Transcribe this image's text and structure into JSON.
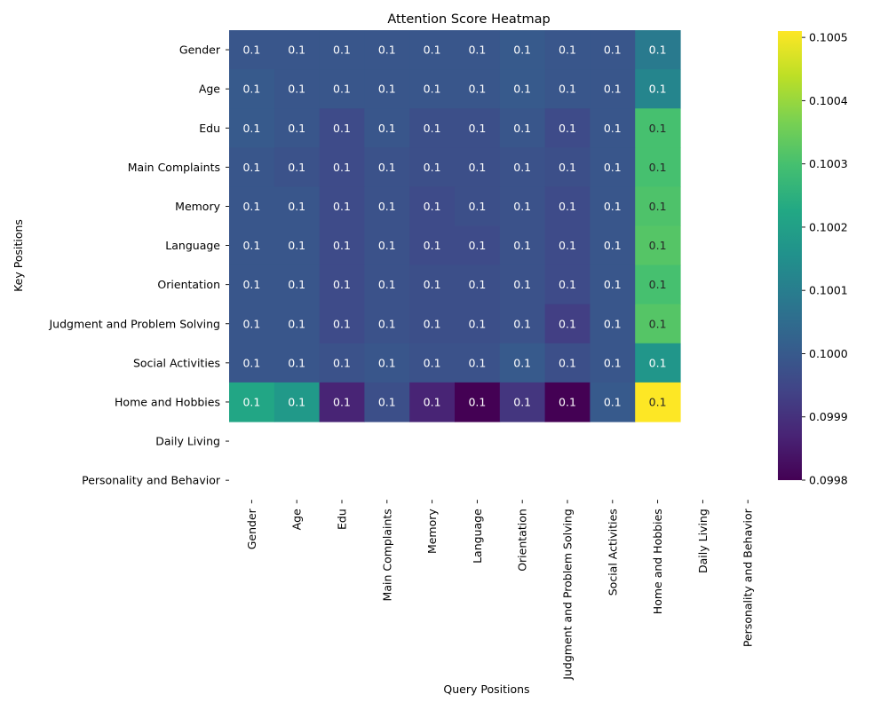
{
  "chart_data": {
    "type": "heatmap",
    "title": "Attention Score Heatmap",
    "xlabel": "Query Positions",
    "ylabel": "Key Positions",
    "x_categories": [
      "Gender",
      "Age",
      "Edu",
      "Main Complaints",
      "Memory",
      "Language",
      "Orientation",
      "Judgment and Problem Solving",
      "Social Activities",
      "Home and Hobbies",
      "Daily Living",
      "Personality and Behavior"
    ],
    "y_categories": [
      "Gender",
      "Age",
      "Edu",
      "Main Complaints",
      "Memory",
      "Language",
      "Orientation",
      "Judgment and Problem Solving",
      "Social Activities",
      "Home and Hobbies",
      "Daily Living",
      "Personality and Behavior"
    ],
    "values": [
      [
        0.09999,
        0.09999,
        0.09999,
        0.09999,
        0.09999,
        0.09999,
        0.1,
        0.09999,
        0.09999,
        0.10009,
        null,
        null
      ],
      [
        0.1,
        0.09999,
        0.09999,
        0.09999,
        0.09999,
        0.09999,
        0.1,
        0.09999,
        0.09999,
        0.10012,
        null,
        null
      ],
      [
        0.1,
        0.09999,
        0.09996,
        0.09999,
        0.09997,
        0.09997,
        0.09999,
        0.09996,
        0.09999,
        0.1003,
        null,
        null
      ],
      [
        0.09999,
        0.09998,
        0.09996,
        0.09998,
        0.09997,
        0.09997,
        0.09998,
        0.09997,
        0.09999,
        0.1003,
        null,
        null
      ],
      [
        0.09999,
        0.09999,
        0.09996,
        0.09998,
        0.09996,
        0.09997,
        0.09998,
        0.09996,
        0.09999,
        0.10031,
        null,
        null
      ],
      [
        0.09999,
        0.09999,
        0.09996,
        0.09998,
        0.09996,
        0.09996,
        0.09998,
        0.09996,
        0.09999,
        0.10032,
        null,
        null
      ],
      [
        0.09999,
        0.09999,
        0.09996,
        0.09998,
        0.09997,
        0.09997,
        0.09998,
        0.09996,
        0.09999,
        0.1003,
        null,
        null
      ],
      [
        0.09999,
        0.09999,
        0.09996,
        0.09998,
        0.09997,
        0.09997,
        0.09998,
        0.09993,
        0.09999,
        0.10032,
        null,
        null
      ],
      [
        0.09999,
        0.09999,
        0.09998,
        0.09999,
        0.09998,
        0.09998,
        0.1,
        0.09997,
        0.09999,
        0.10017,
        null,
        null
      ],
      [
        0.10022,
        0.10018,
        0.09987,
        0.09997,
        0.09987,
        0.0998,
        0.09991,
        0.0998,
        0.1,
        0.10051,
        null,
        null
      ],
      [
        null,
        null,
        null,
        null,
        null,
        null,
        null,
        null,
        null,
        null,
        null,
        null
      ],
      [
        null,
        null,
        null,
        null,
        null,
        null,
        null,
        null,
        null,
        null,
        null,
        null
      ]
    ],
    "annotation": "0.1",
    "colormap": "viridis",
    "vmin": 0.0998,
    "vmax": 0.10051,
    "colorbar_ticks": [
      "0.1005",
      "0.1004",
      "0.1003",
      "0.1002",
      "0.1001",
      "0.1000",
      "0.0999",
      "0.0998"
    ],
    "colorbar_tick_values": [
      0.1005,
      0.1004,
      0.1003,
      0.1002,
      0.1001,
      0.1,
      0.0999,
      0.0998
    ]
  }
}
